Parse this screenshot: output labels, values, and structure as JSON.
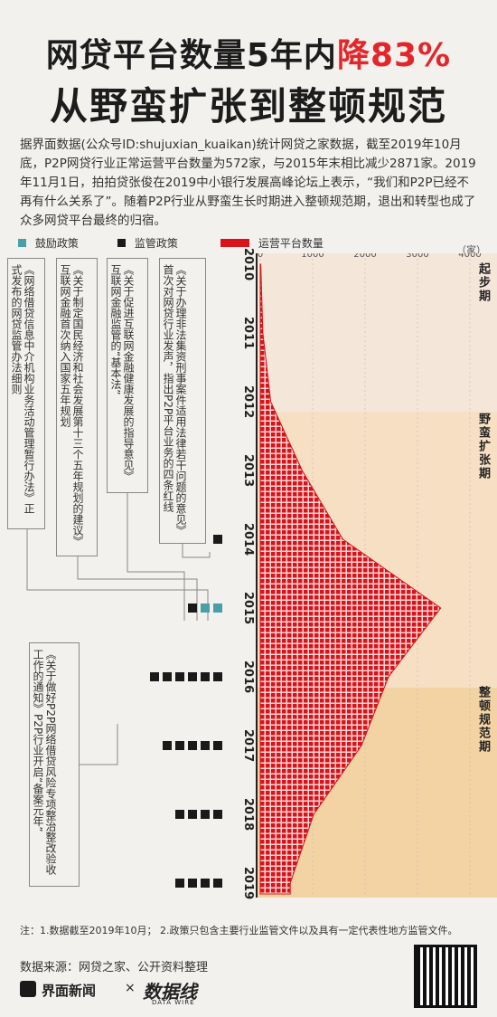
{
  "title_line1": "网贷平台数量5年内",
  "title_line1_highlight": "降83%",
  "title_line2": "从野蛮扩张到整顿规范",
  "intro": "据界面数据(公众号ID:shujuxian_kuaikan)统计网贷之家数据，截至2019年10月底，P2P网贷行业正常运营平台数量为572家，与2015年末相比减少2871家。2019年11月1日，拍拍贷张俊在2019中小银行发展高峰论坛上表示，“我们和P2P已经不再有什么关系了”。随着P2P行业从野蛮生长时期进入整顿规范期，退出和转型也成了众多网贷平台最终的归宿。",
  "legend": {
    "encourage": "鼓励政策",
    "regulate": "监管政策",
    "platforms": "运营平台数量",
    "unit": "（家）"
  },
  "colors": {
    "encourage": "#4a9ea6",
    "regulate": "#1a1a1a",
    "area": "#d8141a",
    "phase1": "#f5e6da",
    "phase2": "#f6dfc2",
    "phase3": "#f3d3a4"
  },
  "phases": [
    "起步期",
    "野蛮扩张期",
    "整顿规范期"
  ],
  "policies": [
    "《网络借贷信息中介机构业务活动管理暂行办法》正式发布的网贷监管办法细则",
    "《关于制定国民经济和社会发展第十三个五年规划的建议》互联网金融首次纳入国家五年规划",
    "《关于促进互联网金融健康发展的指导意见》互联网金融监管的“基本法”",
    "《关于办理非法集资刑事案件适用法律若干问题的意见》首次对网贷行业发声，指出P2P平台业务的四条红线",
    "《关于做好P2P网络借贷风险专项整治整改验收工作的通知》P2P行业开启“备案元年”"
  ],
  "chart_data": {
    "type": "area",
    "x": [
      "2010",
      "2011",
      "2012",
      "2013",
      "2014",
      "2015",
      "2016",
      "2017",
      "2018",
      "2019"
    ],
    "series": [
      {
        "name": "运营平台数量",
        "values": [
          10,
          50,
          200,
          800,
          1575,
          3443,
          2448,
          1931,
          1021,
          572
        ]
      }
    ],
    "xlim": [
      0,
      4000
    ],
    "xticks": [
      "0",
      "1000",
      "2000",
      "3000",
      "4000"
    ],
    "policy_markers": [
      {
        "year": "2014",
        "encourage": 0,
        "regulate": 1
      },
      {
        "year": "2015",
        "encourage": 2,
        "regulate": 1
      },
      {
        "year": "2016",
        "encourage": 0,
        "regulate": 6
      },
      {
        "year": "2017",
        "encourage": 0,
        "regulate": 5
      },
      {
        "year": "2018",
        "encourage": 0,
        "regulate": 4
      },
      {
        "year": "2019",
        "encourage": 0,
        "regulate": 4
      }
    ]
  },
  "note": "注：1.数据截至2019年10月；  2.政策只包含主要行业监管文件以及具有一定代表性地方监管文件。",
  "source": "数据来源：网贷之家、公开资料整理",
  "brand": "界面新闻",
  "brand_x": "×",
  "brand2": "数据线",
  "brand2_sub": "DATA WIRE"
}
